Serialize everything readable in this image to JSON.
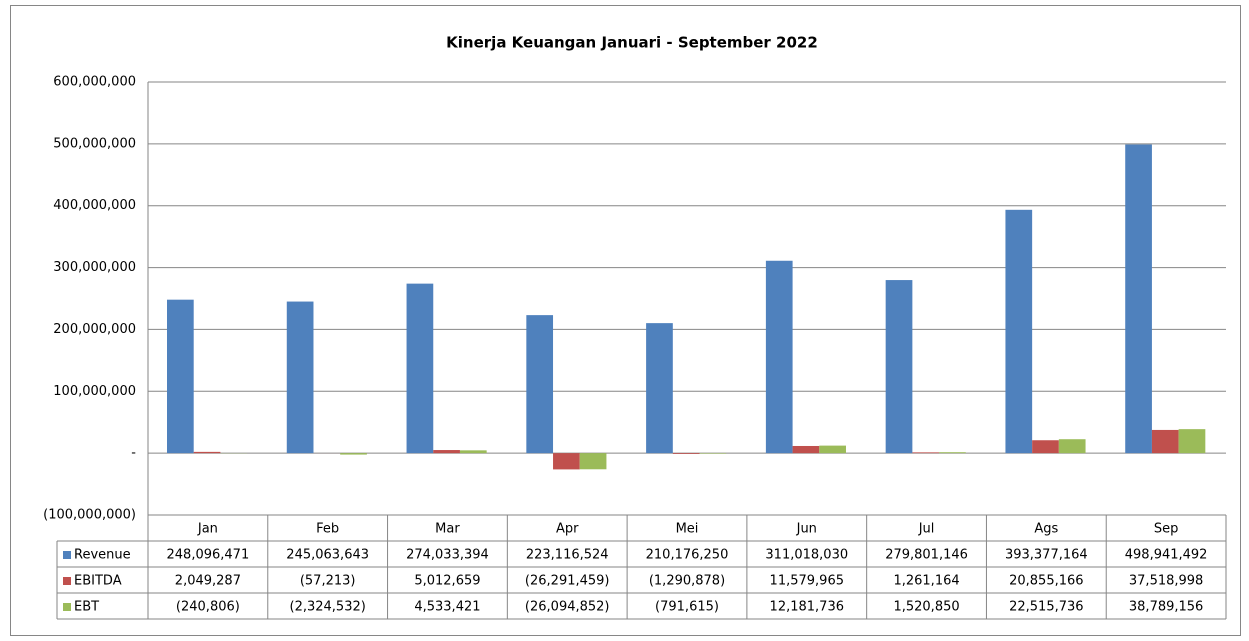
{
  "chart_data": {
    "type": "bar",
    "title": "Kinerja Keuangan Januari - September 2022",
    "categories": [
      "Jan",
      "Feb",
      "Mar",
      "Apr",
      "Mei",
      "Jun",
      "Jul",
      "Ags",
      "Sep"
    ],
    "series": [
      {
        "name": "Revenue",
        "color": "#4f81bd",
        "values": [
          248096471,
          245063643,
          274033394,
          223116524,
          210176250,
          311018030,
          279801146,
          393377164,
          498941492
        ],
        "value_labels": [
          "248,096,471",
          "245,063,643",
          "274,033,394",
          "223,116,524",
          "210,176,250",
          "311,018,030",
          "279,801,146",
          "393,377,164",
          "498,941,492"
        ]
      },
      {
        "name": "EBITDA",
        "color": "#c0504d",
        "values": [
          2049287,
          -57213,
          5012659,
          -26291459,
          -1290878,
          11579965,
          1261164,
          20855166,
          37518998
        ],
        "value_labels": [
          "2,049,287",
          "(57,213)",
          "5,012,659",
          "(26,291,459)",
          "(1,290,878)",
          "11,579,965",
          "1,261,164",
          "20,855,166",
          "37,518,998"
        ]
      },
      {
        "name": "EBT",
        "color": "#9bbb59",
        "values": [
          -240806,
          -2324532,
          4533421,
          -26094852,
          -791615,
          12181736,
          1520850,
          22515736,
          38789156
        ],
        "value_labels": [
          "(240,806)",
          "(2,324,532)",
          "4,533,421",
          "(26,094,852)",
          "(791,615)",
          "12,181,736",
          "1,520,850",
          "22,515,736",
          "38,789,156"
        ]
      }
    ],
    "ylim": [
      -100000000,
      600000000
    ],
    "yticks": [
      {
        "value": -100000000,
        "label": "(100,000,000)"
      },
      {
        "value": 0,
        "label": "-"
      },
      {
        "value": 100000000,
        "label": "100,000,000"
      },
      {
        "value": 200000000,
        "label": "200,000,000"
      },
      {
        "value": 300000000,
        "label": "300,000,000"
      },
      {
        "value": 400000000,
        "label": "400,000,000"
      },
      {
        "value": 500000000,
        "label": "500,000,000"
      },
      {
        "value": 600000000,
        "label": "600,000,000"
      }
    ],
    "grid": true
  }
}
